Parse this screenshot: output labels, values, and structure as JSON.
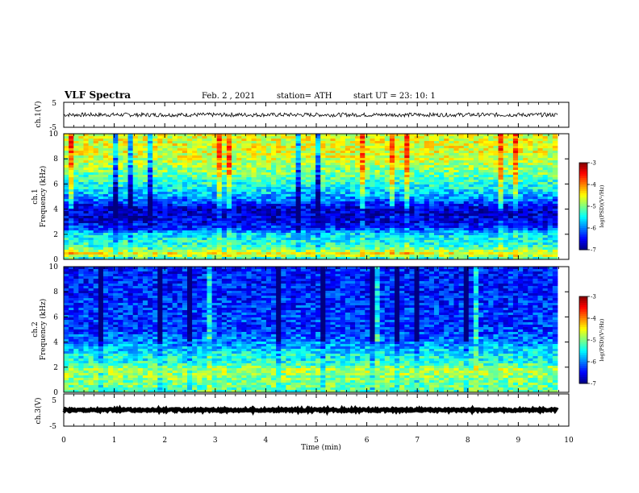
{
  "header": {
    "title": "VLF Spectra",
    "date": "Feb. 2  , 2021",
    "station": "station= ATH",
    "start": "start  UT =   23: 10: 1"
  },
  "chart_data": [
    {
      "type": "line",
      "panel": "ch.1 waveform",
      "ylabel": "ch.1(V)",
      "yticks": [
        "5",
        "-5"
      ],
      "ylim": [
        -5,
        5
      ],
      "x_range_min": [
        0,
        9.83
      ],
      "series": [
        {
          "values_description_level_v": 0.0,
          "amplitude_v": 0.8
        }
      ]
    },
    {
      "type": "heatmap",
      "panel": "ch.1 spectrogram",
      "ylabel_line1": "ch.1",
      "ylabel_line2": "Frequency (kHz)",
      "yticks": [
        "0",
        "2",
        "4",
        "6",
        "8",
        "10"
      ],
      "ylim_khz": [
        0,
        10
      ],
      "x_range_min": [
        0,
        9.83
      ],
      "colorbar": {
        "label": "log(PSD)(V²/Hz)",
        "ticks": [
          "-3",
          "-4",
          "-5",
          "-6",
          "-7"
        ],
        "range": [
          -7,
          -3
        ]
      },
      "band_levels": [
        {
          "f_khz": 0.0,
          "v": -5.6
        },
        {
          "f_khz": 0.4,
          "v": -4.4
        },
        {
          "f_khz": 0.9,
          "v": -5.2
        },
        {
          "f_khz": 1.4,
          "v": -5.4
        },
        {
          "f_khz": 2.0,
          "v": -5.6
        },
        {
          "f_khz": 2.4,
          "v": -6.2
        },
        {
          "f_khz": 3.0,
          "v": -6.6
        },
        {
          "f_khz": 4.0,
          "v": -6.7
        },
        {
          "f_khz": 4.8,
          "v": -6.0
        },
        {
          "f_khz": 5.5,
          "v": -5.6
        },
        {
          "f_khz": 6.5,
          "v": -5.2
        },
        {
          "f_khz": 7.5,
          "v": -4.8
        },
        {
          "f_khz": 8.5,
          "v": -4.6
        },
        {
          "f_khz": 10.0,
          "v": -4.6
        }
      ]
    },
    {
      "type": "heatmap",
      "panel": "ch.2 spectrogram",
      "ylabel_line1": "ch.2",
      "ylabel_line2": "Frequency (kHz)",
      "yticks": [
        "0",
        "2",
        "4",
        "6",
        "8",
        "10"
      ],
      "ylim_khz": [
        0,
        10
      ],
      "x_range_min": [
        0,
        9.83
      ],
      "colorbar": {
        "label": "log(PSD)(V²/Hz)",
        "ticks": [
          "-3",
          "-4",
          "-5",
          "-6",
          "-7"
        ],
        "range": [
          -7,
          -3
        ]
      },
      "band_levels": [
        {
          "f_khz": 0.0,
          "v": -5.2
        },
        {
          "f_khz": 1.0,
          "v": -5.0
        },
        {
          "f_khz": 1.8,
          "v": -4.8
        },
        {
          "f_khz": 2.4,
          "v": -5.4
        },
        {
          "f_khz": 3.0,
          "v": -5.5
        },
        {
          "f_khz": 4.0,
          "v": -6.0
        },
        {
          "f_khz": 5.0,
          "v": -6.3
        },
        {
          "f_khz": 6.5,
          "v": -6.3
        },
        {
          "f_khz": 8.0,
          "v": -6.4
        },
        {
          "f_khz": 10.0,
          "v": -6.4
        }
      ]
    },
    {
      "type": "line",
      "panel": "ch.3 waveform",
      "ylabel": "ch.3(V)",
      "yticks": [
        "5",
        "-5"
      ],
      "ylim": [
        -5,
        5
      ],
      "x_range_min": [
        0,
        9.83
      ],
      "series": [
        {
          "values_description_level_v": 0.0,
          "amplitude_v": 0.3
        }
      ]
    }
  ],
  "x_axis": {
    "label": "Time  (min)",
    "ticks": [
      "0",
      "1",
      "2",
      "3",
      "4",
      "5",
      "6",
      "7",
      "8",
      "9",
      "10"
    ],
    "range": [
      0,
      10
    ]
  }
}
